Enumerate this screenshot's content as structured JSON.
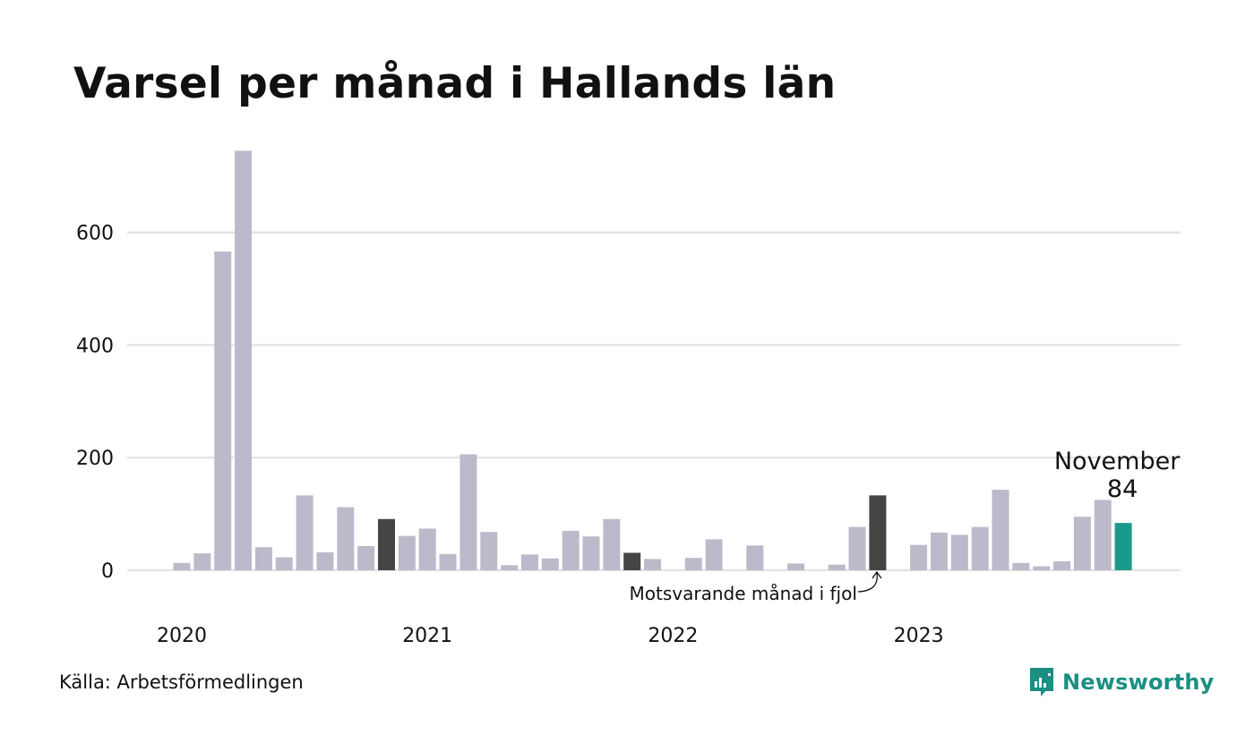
{
  "title": "Varsel per månad i Hallands län",
  "source": "Källa: Arbetsförmedlingen",
  "brand": "Newsworthy",
  "colors": {
    "bar": "#bcbaca",
    "previous_year": "#454545",
    "current": "#1a9a8a",
    "grid": "#e2e2e2",
    "brand": "#1a8f82"
  },
  "chart_data": {
    "type": "bar",
    "title": "Varsel per månad i Hallands län",
    "xlabel": "",
    "ylabel": "",
    "ylim": [
      0,
      750
    ],
    "grid": true,
    "yticks": [
      0,
      200,
      400,
      600
    ],
    "xtick_labels": [
      "2020",
      "2021",
      "2022",
      "2023"
    ],
    "months": [
      "2020-01",
      "2020-02",
      "2020-03",
      "2020-04",
      "2020-05",
      "2020-06",
      "2020-07",
      "2020-08",
      "2020-09",
      "2020-10",
      "2020-11",
      "2020-12",
      "2021-01",
      "2021-02",
      "2021-03",
      "2021-04",
      "2021-05",
      "2021-06",
      "2021-07",
      "2021-08",
      "2021-09",
      "2021-10",
      "2021-11",
      "2021-12",
      "2022-01",
      "2022-02",
      "2022-03",
      "2022-04",
      "2022-05",
      "2022-06",
      "2022-07",
      "2022-08",
      "2022-09",
      "2022-10",
      "2022-11",
      "2022-12",
      "2023-01",
      "2023-02",
      "2023-03",
      "2023-04",
      "2023-05",
      "2023-06",
      "2023-07",
      "2023-08",
      "2023-09",
      "2023-10",
      "2023-11"
    ],
    "values": [
      13,
      30,
      566,
      745,
      41,
      23,
      133,
      32,
      112,
      43,
      91,
      61,
      74,
      29,
      206,
      68,
      9,
      28,
      21,
      70,
      60,
      91,
      31,
      20,
      0,
      22,
      55,
      0,
      44,
      0,
      12,
      0,
      10,
      77,
      133,
      0,
      45,
      67,
      63,
      77,
      143,
      13,
      7,
      16,
      95,
      125,
      84
    ],
    "previous_year_indices": [
      10,
      22,
      34
    ],
    "current_index": 46,
    "annotations": {
      "current_month": "November",
      "current_value": "84",
      "previous_year": "Motsvarande månad i fjol"
    }
  }
}
